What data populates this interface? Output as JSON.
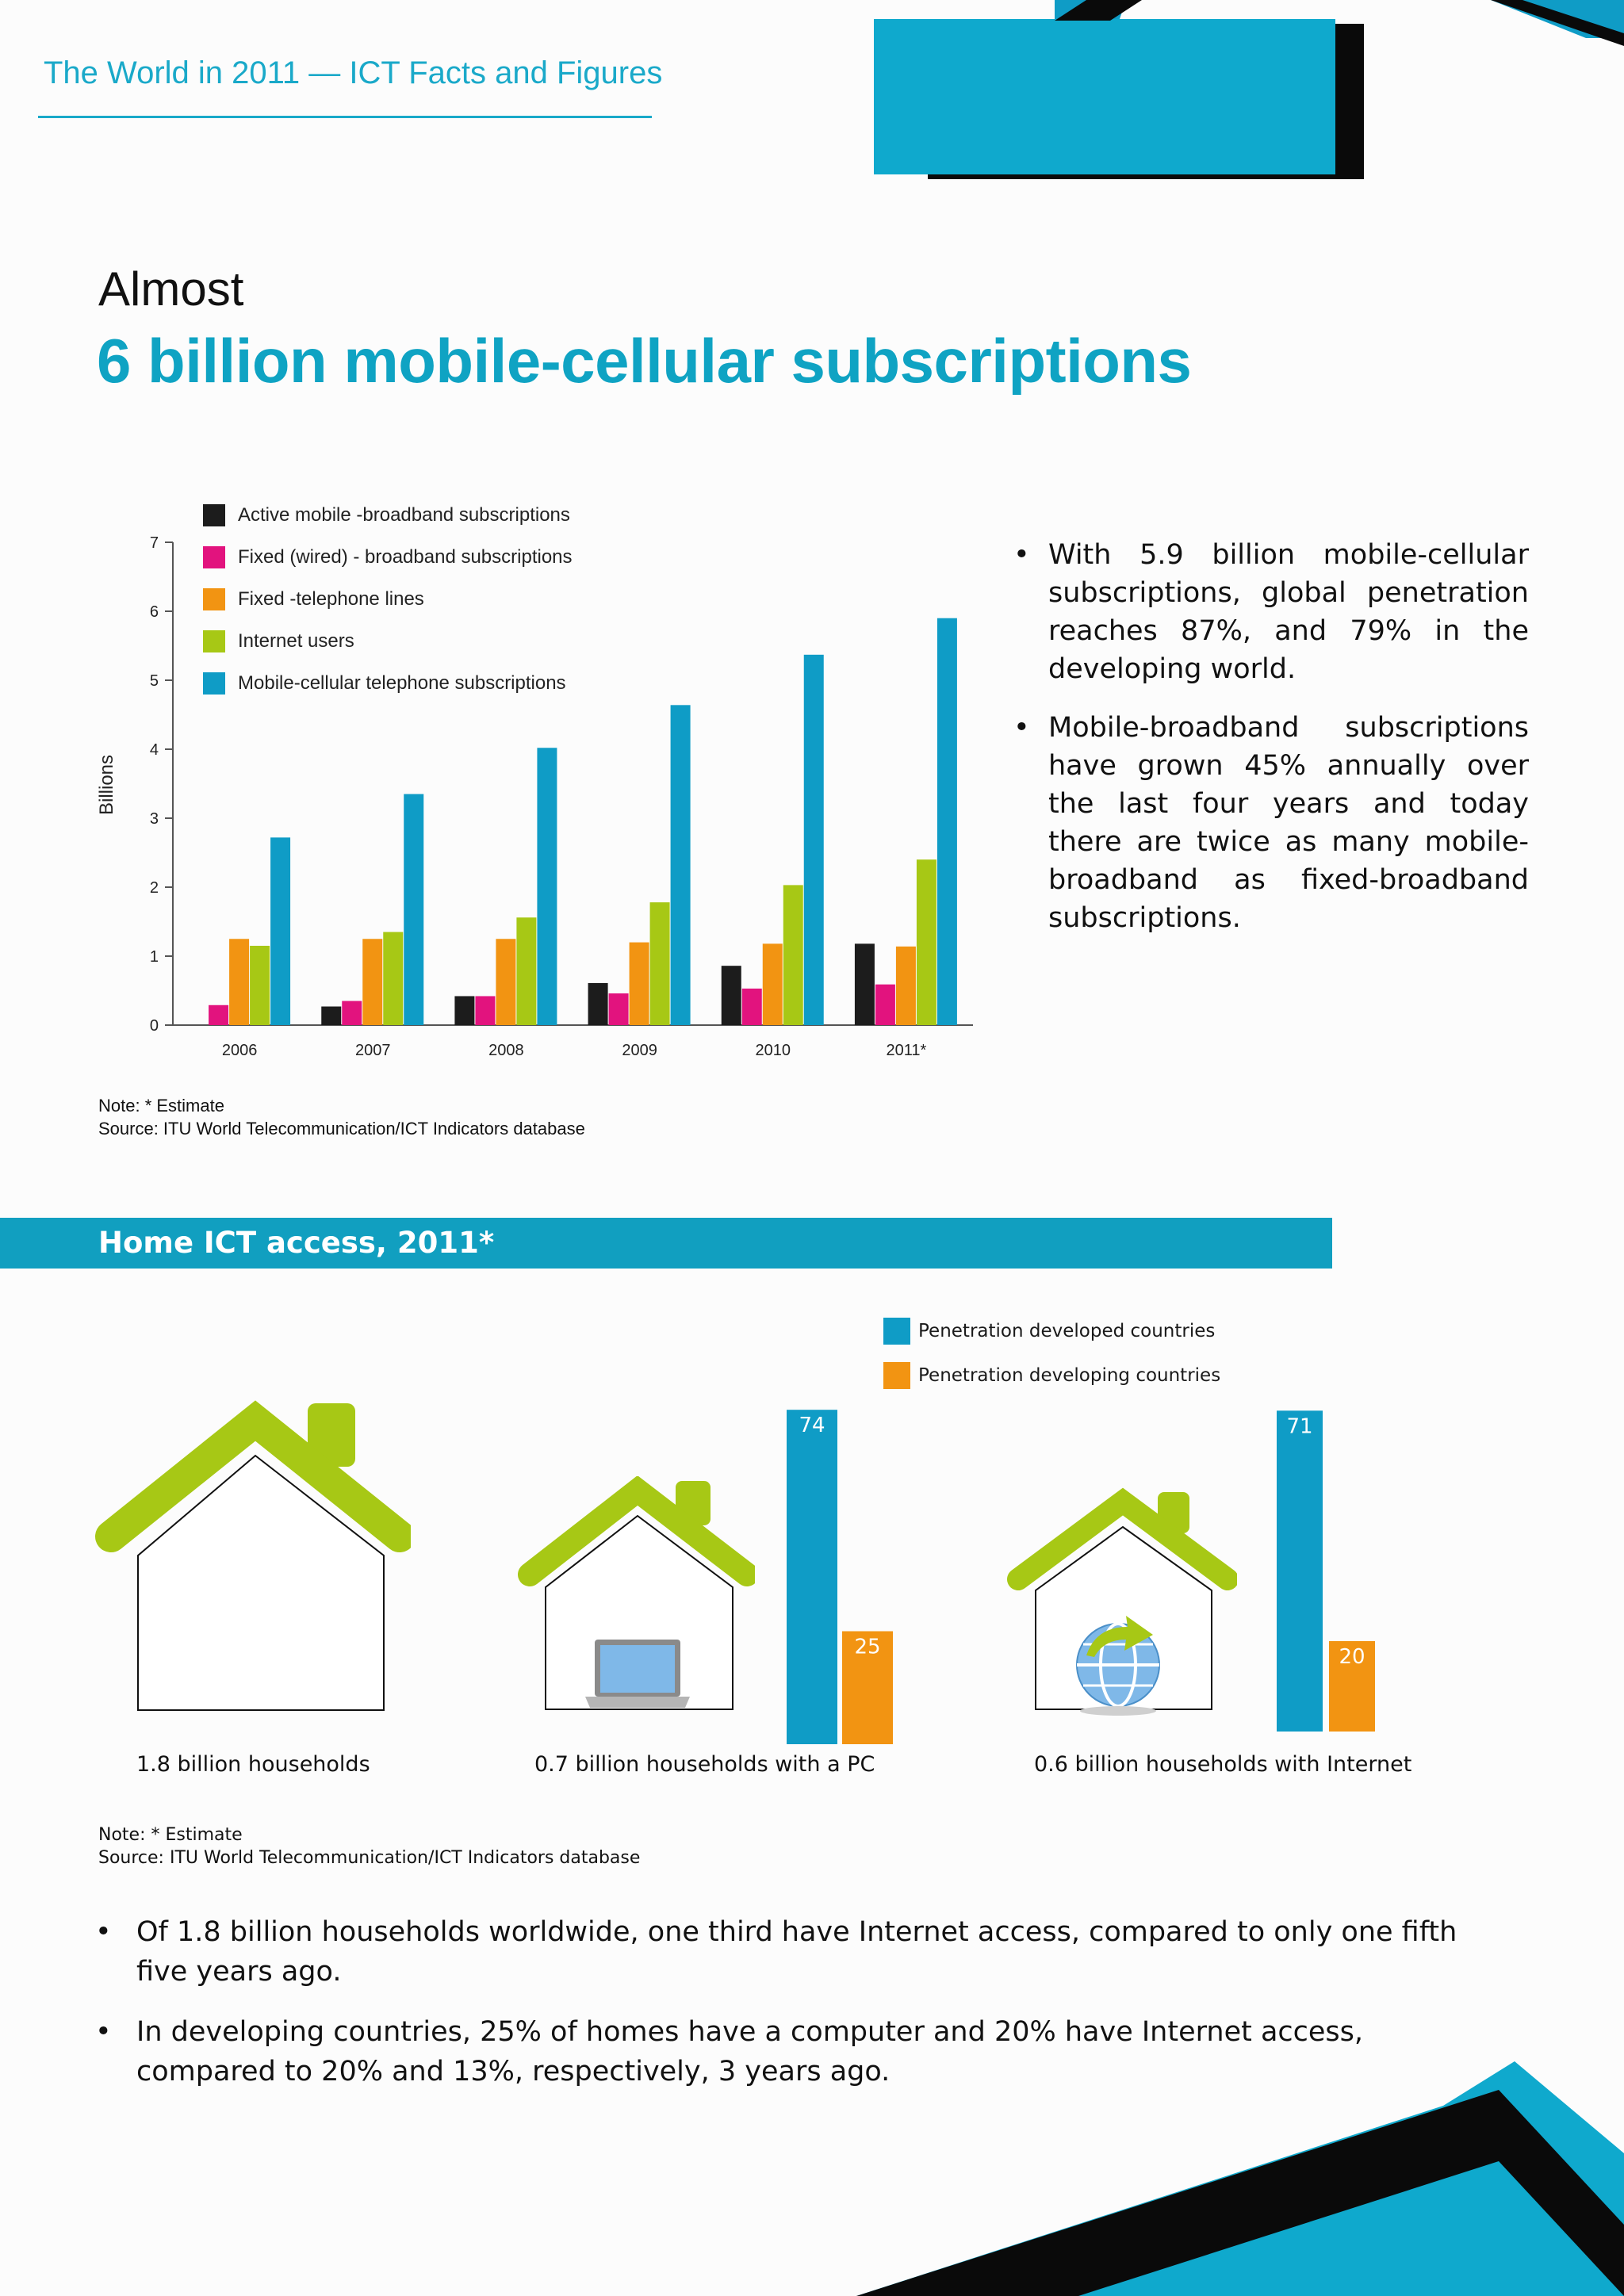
{
  "header": {
    "title": "The World in 2011 — ICT Facts and Figures"
  },
  "headline": {
    "line1": "Almost",
    "line2": "6 billion mobile-cellular subscriptions"
  },
  "chart_data": [
    {
      "type": "bar",
      "title": "",
      "xlabel": "",
      "ylabel": "Billions",
      "ylim": [
        0,
        7
      ],
      "yticks": [
        "0",
        "1",
        "2",
        "3",
        "4",
        "5",
        "6",
        "7"
      ],
      "categories": [
        "2006",
        "2007",
        "2008",
        "2009",
        "2010",
        "2011*"
      ],
      "legend_position": "top-left",
      "series": [
        {
          "name": "Active mobile -broadband subscriptions",
          "color": "#1c1c1c",
          "values": [
            0,
            0.27,
            0.42,
            0.61,
            0.86,
            1.18
          ]
        },
        {
          "name": "Fixed (wired) - broadband subscriptions",
          "color": "#e2137e",
          "values": [
            0.29,
            0.35,
            0.42,
            0.46,
            0.53,
            0.59
          ]
        },
        {
          "name": "Fixed -telephone lines",
          "color": "#f29412",
          "values": [
            1.25,
            1.25,
            1.25,
            1.2,
            1.18,
            1.14
          ]
        },
        {
          "name": "Internet users",
          "color": "#a7c815",
          "values": [
            1.15,
            1.35,
            1.56,
            1.78,
            2.03,
            2.4
          ]
        },
        {
          "name": "Mobile-cellular telephone subscriptions",
          "color": "#0f9cc6",
          "values": [
            2.72,
            3.35,
            4.02,
            4.64,
            5.37,
            5.9
          ]
        }
      ]
    },
    {
      "type": "bar",
      "title": "Home ICT access, 2011*",
      "categories": [
        "0.7 billion households with a PC",
        "0.6 billion households with Internet"
      ],
      "legend_position": "top-right",
      "series": [
        {
          "name": "Penetration developed countries",
          "color": "#0f9cc6",
          "values": [
            74,
            71
          ]
        },
        {
          "name": "Penetration developing countries",
          "color": "#f29412",
          "values": [
            25,
            20
          ]
        }
      ]
    }
  ],
  "chart_bullets": [
    "With 5.9 billion mobile-cellular subscriptions, global penetration reaches 87%, and 79% in the developing world.",
    "Mobile-broadband subscriptions have grown 45% annually over the last four years and today there are twice as many mobile-broadband as fixed-broadband subscriptions."
  ],
  "chart_note": {
    "note": "Note: * Estimate",
    "source": "Source: ITU World Telecommunication/ICT Indicators database"
  },
  "home_section": {
    "title": "Home ICT access, 2011*",
    "legend": {
      "developed": "Penetration developed countries",
      "developing": "Penetration developing countries"
    },
    "colors": {
      "developed": "#0f9cc6",
      "developing": "#f29412",
      "roof": "#a7c815"
    },
    "captions": [
      "1.8 billion households",
      "0.7 billion households with a PC",
      "0.6 billion households with Internet"
    ],
    "note": "Note: * Estimate",
    "source": "Source: ITU World Telecommunication/ICT Indicators database"
  },
  "home_bullets": [
    "Of 1.8 billion households worldwide, one third have Internet access, compared to only one fifth five years ago.",
    "In developing countries, 25% of homes have a computer and 20% have Internet access, compared to 20% and 13%, respectively, 3 years ago."
  ],
  "icons": {
    "house": "house-icon",
    "laptop": "laptop-icon",
    "globe": "globe-icon"
  }
}
